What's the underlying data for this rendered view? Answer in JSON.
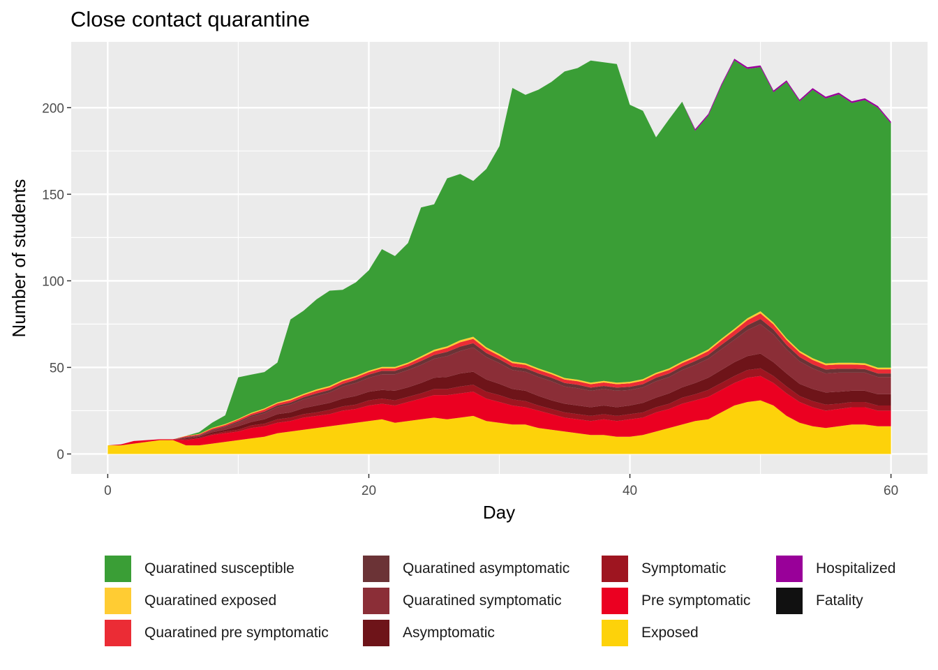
{
  "chart_data": {
    "type": "area",
    "stacked": true,
    "title": "Close contact quarantine",
    "xlabel": "Day",
    "ylabel": "Number of students",
    "xlim": [
      -2.8,
      62.8
    ],
    "ylim": [
      -11.5,
      238
    ],
    "x_ticks": [
      0,
      20,
      40,
      60
    ],
    "y_ticks": [
      0,
      50,
      100,
      150,
      200
    ],
    "grid": true,
    "legend_position": "bottom",
    "x": [
      0,
      1,
      2,
      3,
      4,
      5,
      6,
      7,
      8,
      9,
      10,
      11,
      12,
      13,
      14,
      15,
      16,
      17,
      18,
      19,
      20,
      21,
      22,
      23,
      24,
      25,
      26,
      27,
      28,
      29,
      30,
      31,
      32,
      33,
      34,
      35,
      36,
      37,
      38,
      39,
      40,
      41,
      42,
      43,
      44,
      45,
      46,
      47,
      48,
      49,
      50,
      51,
      52,
      53,
      54,
      55,
      56,
      57,
      58,
      59,
      60
    ],
    "series": [
      {
        "name": "Exposed",
        "color": "#FDD20A",
        "values": [
          5,
          5,
          6,
          7,
          8,
          8,
          5,
          5,
          6,
          7,
          8,
          9,
          10,
          12,
          13,
          14,
          15,
          16,
          17,
          18,
          19,
          20,
          18,
          19,
          20,
          21,
          20,
          21,
          22,
          19,
          18,
          17,
          17,
          15,
          14,
          13,
          12,
          11,
          11,
          10,
          10,
          11,
          13,
          15,
          17,
          19,
          20,
          24,
          28,
          30,
          31,
          28,
          22,
          18,
          16,
          15,
          16,
          17,
          17,
          16,
          16
        ]
      },
      {
        "name": "Pre symptomatic",
        "color": "#EB0021",
        "values": [
          0,
          0.5,
          1.5,
          1,
          0.5,
          0.5,
          3,
          4,
          5,
          5,
          5,
          6,
          6,
          6,
          6,
          7,
          7,
          7,
          8,
          8,
          9,
          9,
          10,
          11,
          12,
          13,
          14,
          14,
          14,
          13,
          12,
          11,
          10,
          10,
          9,
          8,
          8,
          8,
          9,
          9,
          10,
          10,
          11,
          11,
          12,
          12,
          13,
          13,
          13,
          14,
          14,
          13,
          13,
          12,
          11,
          10,
          10,
          10,
          10,
          9,
          9
        ]
      },
      {
        "name": "Symptomatic",
        "color": "#9E1520",
        "values": [
          0,
          0,
          0,
          0,
          0,
          0,
          0.5,
          0.5,
          0.5,
          1,
          1,
          1.5,
          1.5,
          2,
          2,
          2,
          2,
          2.5,
          2.5,
          2.5,
          3,
          3,
          3,
          3,
          3,
          3.5,
          3.5,
          4,
          4,
          4,
          4,
          3.5,
          3.5,
          3,
          3,
          3,
          3,
          3,
          3,
          3,
          3,
          3,
          3,
          3,
          3.5,
          3.5,
          4,
          4,
          4,
          4.5,
          4.5,
          4,
          4,
          3.5,
          3.5,
          3.5,
          3,
          3,
          3,
          3,
          3
        ]
      },
      {
        "name": "Asymptomatic",
        "color": "#6E1419",
        "values": [
          0,
          0,
          0,
          0,
          0,
          0,
          0.5,
          0.5,
          1,
          1,
          2,
          2,
          2.5,
          3,
          3,
          3.5,
          4,
          4,
          4.5,
          5,
          5,
          5,
          5.5,
          5.5,
          6,
          6.5,
          7,
          7.5,
          7.5,
          7,
          6.5,
          6,
          6,
          5.5,
          5,
          5,
          5,
          5,
          5,
          5,
          5,
          5.5,
          5.5,
          6,
          6,
          6.5,
          7,
          7.5,
          8,
          8,
          8.5,
          8,
          7.5,
          7,
          7,
          7,
          7,
          6.5,
          6.5,
          6.5,
          6.5
        ]
      },
      {
        "name": "Quaratined symptomatic",
        "color": "#8B2E37",
        "values": [
          0,
          0,
          0,
          0,
          0,
          0,
          0.5,
          0.5,
          1,
          1.5,
          2,
          3,
          3.5,
          4,
          4.5,
          5,
          5.5,
          6,
          7,
          7.5,
          8,
          9,
          9.5,
          10,
          10.5,
          11,
          12,
          13,
          14,
          13,
          12,
          11,
          11,
          11,
          11,
          10,
          10,
          9.5,
          9.5,
          9.5,
          9,
          9,
          9.5,
          9.5,
          10,
          10.5,
          11,
          12,
          13,
          15,
          17,
          16,
          14,
          13,
          12,
          11,
          11,
          10.5,
          10.5,
          10,
          10
        ]
      },
      {
        "name": "Quaratined asymptomatic",
        "color": "#6B3336",
        "values": [
          0,
          0,
          0,
          0,
          0,
          0,
          0.3,
          0.3,
          0.5,
          0.5,
          0.8,
          0.8,
          1,
          1,
          1.2,
          1.2,
          1.5,
          1.5,
          1.5,
          1.8,
          1.8,
          2,
          2,
          2,
          2.2,
          2.2,
          2.5,
          2.5,
          2.5,
          2.3,
          2.2,
          2,
          2,
          2,
          2,
          2,
          2,
          1.8,
          1.8,
          1.8,
          1.8,
          1.8,
          2,
          2,
          2,
          2.2,
          2.2,
          2.5,
          2.5,
          2.8,
          3,
          2.8,
          2.5,
          2.5,
          2.3,
          2.3,
          2.2,
          2.2,
          2,
          2,
          2
        ]
      },
      {
        "name": "Quaratined pre symptomatic",
        "color": "#EB2C35",
        "values": [
          0,
          0,
          0,
          0,
          0,
          0,
          0.5,
          0.5,
          0.7,
          0.8,
          1,
          1,
          1.2,
          1.2,
          1.3,
          1.3,
          1.5,
          1.5,
          1.5,
          1.5,
          1.5,
          1.5,
          1.5,
          1.5,
          1.8,
          2,
          2.2,
          2.5,
          2.5,
          2.3,
          2,
          2,
          2,
          2,
          2,
          2,
          2,
          2,
          2,
          2,
          2,
          2,
          2,
          2,
          2,
          2,
          2.2,
          2.5,
          2.8,
          3,
          3.2,
          3,
          2.8,
          2.6,
          2.5,
          2.5,
          2.5,
          2.5,
          2.4,
          2.4,
          2.4
        ]
      },
      {
        "name": "Quaratined exposed",
        "color": "#FFCC33",
        "values": [
          0,
          0,
          0,
          0,
          0,
          0,
          0.2,
          0.3,
          0.4,
          0.5,
          0.5,
          0.5,
          0.6,
          0.6,
          0.7,
          0.7,
          0.8,
          0.8,
          0.8,
          0.8,
          0.8,
          0.8,
          0.8,
          0.8,
          0.9,
          1,
          1,
          1.2,
          1.2,
          1,
          1,
          0.9,
          0.9,
          0.9,
          0.9,
          0.9,
          0.9,
          0.9,
          0.9,
          0.9,
          0.9,
          0.9,
          0.9,
          0.9,
          0.9,
          0.9,
          1,
          1,
          1,
          1.1,
          1.2,
          1.1,
          1,
          1,
          1,
          1,
          1,
          1,
          1,
          1,
          1
        ]
      },
      {
        "name": "Quaratined susceptible",
        "color": "#3A9E36",
        "values": [
          0,
          0,
          0,
          0,
          0,
          0,
          0,
          1,
          3,
          5,
          24,
          22,
          21,
          23,
          46,
          48,
          52,
          55,
          52,
          54,
          58,
          68,
          64,
          69,
          86,
          84,
          97,
          96,
          90,
          103,
          120,
          158,
          155,
          161,
          168,
          177,
          180,
          186,
          184,
          184,
          160,
          155,
          136,
          144,
          150,
          130,
          135,
          146,
          155,
          144,
          141,
          133,
          148,
          144,
          155,
          153,
          155,
          150,
          152,
          150,
          141
        ]
      },
      {
        "name": "Hospitalized",
        "color": "#990099",
        "values": [
          0,
          0,
          0,
          0,
          0,
          0,
          0,
          0,
          0,
          0,
          0,
          0,
          0,
          0,
          0,
          0,
          0,
          0,
          0,
          0,
          0,
          0,
          0,
          0,
          0,
          0,
          0,
          0,
          0,
          0,
          0,
          0,
          0,
          0,
          0,
          0,
          0,
          0,
          0,
          0,
          0,
          0,
          0,
          0,
          0,
          1,
          1,
          1,
          1,
          1,
          1,
          1,
          1,
          1,
          1,
          1,
          1,
          1,
          1,
          1,
          1
        ]
      },
      {
        "name": "Fatality",
        "color": "#111111",
        "values": [
          0,
          0,
          0,
          0,
          0,
          0,
          0,
          0,
          0,
          0,
          0,
          0,
          0,
          0,
          0,
          0,
          0,
          0,
          0,
          0,
          0,
          0,
          0,
          0,
          0,
          0,
          0,
          0,
          0,
          0,
          0,
          0,
          0,
          0,
          0,
          0,
          0,
          0,
          0,
          0,
          0,
          0,
          0,
          0,
          0,
          0,
          0,
          0,
          0,
          0,
          0,
          0,
          0,
          0,
          0,
          0,
          0,
          0,
          0,
          0,
          0
        ]
      }
    ],
    "legend": [
      {
        "label": "Quaratined susceptible",
        "color": "#3A9E36"
      },
      {
        "label": "Quaratined asymptomatic",
        "color": "#6B3336"
      },
      {
        "label": "Symptomatic",
        "color": "#9E1520"
      },
      {
        "label": "Hospitalized",
        "color": "#990099"
      },
      {
        "label": "Quaratined exposed",
        "color": "#FFCC33"
      },
      {
        "label": "Quaratined symptomatic",
        "color": "#8B2E37"
      },
      {
        "label": "Pre symptomatic",
        "color": "#EB0021"
      },
      {
        "label": "Fatality",
        "color": "#111111"
      },
      {
        "label": "Quaratined pre symptomatic",
        "color": "#EB2C35"
      },
      {
        "label": "Asymptomatic",
        "color": "#6E1419"
      },
      {
        "label": "Exposed",
        "color": "#FDD20A"
      }
    ]
  }
}
